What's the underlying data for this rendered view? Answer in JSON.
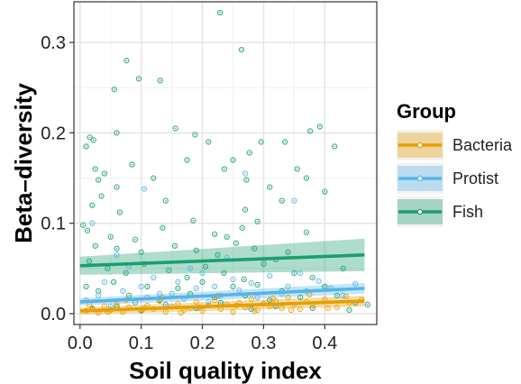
{
  "chart_data": {
    "type": "scatter",
    "title": "",
    "xlabel": "Soil quality index",
    "ylabel": "Beta–diversity",
    "xlim": [
      -0.01,
      0.485
    ],
    "ylim": [
      -0.012,
      0.345
    ],
    "x_ticks": [
      0.0,
      0.1,
      0.2,
      0.3,
      0.4
    ],
    "x_tick_labels": [
      "0.0",
      "0.1",
      "0.2",
      "0.3",
      "0.4"
    ],
    "y_ticks": [
      0.0,
      0.1,
      0.2,
      0.3
    ],
    "y_tick_labels": [
      "0.0",
      "0.1",
      "0.2",
      "0.3"
    ],
    "grid": true,
    "legend": {
      "title": "Group",
      "position": "right"
    },
    "series": [
      {
        "name": "Bacteria",
        "color": "#E69F00",
        "trend": {
          "x": [
            0.0,
            0.465
          ],
          "y": [
            0.003,
            0.014
          ],
          "ci": [
            0.004,
            0.006
          ]
        },
        "points": [
          [
            0.01,
            0.003
          ],
          [
            0.02,
            0.006
          ],
          [
            0.03,
            0.001
          ],
          [
            0.04,
            0.008
          ],
          [
            0.05,
            0.004
          ],
          [
            0.06,
            0.01
          ],
          [
            0.07,
            0.002
          ],
          [
            0.08,
            0.007
          ],
          [
            0.09,
            0.012
          ],
          [
            0.1,
            0.003
          ],
          [
            0.11,
            0.009
          ],
          [
            0.12,
            0.005
          ],
          [
            0.13,
            0.014
          ],
          [
            0.14,
            0.002
          ],
          [
            0.15,
            0.008
          ],
          [
            0.16,
            0.011
          ],
          [
            0.17,
            0.004
          ],
          [
            0.18,
            0.006
          ],
          [
            0.19,
            0.013
          ],
          [
            0.2,
            0.003
          ],
          [
            0.21,
            0.009
          ],
          [
            0.22,
            0.015
          ],
          [
            0.23,
            0.005
          ],
          [
            0.24,
            0.01
          ],
          [
            0.25,
            0.002
          ],
          [
            0.26,
            0.012
          ],
          [
            0.27,
            0.007
          ],
          [
            0.28,
            0.016
          ],
          [
            0.29,
            0.004
          ],
          [
            0.3,
            0.011
          ],
          [
            0.31,
            0.008
          ],
          [
            0.32,
            0.014
          ],
          [
            0.33,
            0.006
          ],
          [
            0.34,
            0.018
          ],
          [
            0.35,
            0.01
          ],
          [
            0.36,
            0.005
          ],
          [
            0.37,
            0.013
          ],
          [
            0.38,
            0.009
          ],
          [
            0.4,
            0.016
          ],
          [
            0.42,
            0.007
          ],
          [
            0.44,
            0.012
          ],
          [
            0.46,
            0.015
          ],
          [
            0.015,
            0.01
          ],
          [
            0.045,
            0.002
          ],
          [
            0.075,
            0.015
          ],
          [
            0.105,
            0.006
          ],
          [
            0.135,
            0.018
          ],
          [
            0.165,
            0.001
          ],
          [
            0.195,
            0.007
          ],
          [
            0.225,
            0.02
          ],
          [
            0.255,
            0.009
          ],
          [
            0.285,
            0.003
          ],
          [
            0.315,
            0.017
          ],
          [
            0.345,
            0.004
          ],
          [
            0.375,
            0.021
          ],
          [
            0.405,
            0.006
          ],
          [
            0.435,
            0.019
          ]
        ]
      },
      {
        "name": "Protist",
        "color": "#56B4E9",
        "trend": {
          "x": [
            0.0,
            0.465
          ],
          "y": [
            0.013,
            0.028
          ],
          "ci": [
            0.004,
            0.006
          ]
        },
        "points": [
          [
            0.01,
            0.015
          ],
          [
            0.03,
            0.02
          ],
          [
            0.05,
            0.008
          ],
          [
            0.06,
            0.065
          ],
          [
            0.07,
            0.025
          ],
          [
            0.09,
            0.012
          ],
          [
            0.1,
            0.03
          ],
          [
            0.11,
            0.018
          ],
          [
            0.12,
            0.04
          ],
          [
            0.14,
            0.01
          ],
          [
            0.15,
            0.022
          ],
          [
            0.16,
            0.035
          ],
          [
            0.17,
            0.016
          ],
          [
            0.19,
            0.028
          ],
          [
            0.2,
            0.045
          ],
          [
            0.21,
            0.013
          ],
          [
            0.22,
            0.03
          ],
          [
            0.23,
            0.02
          ],
          [
            0.24,
            0.062
          ],
          [
            0.26,
            0.026
          ],
          [
            0.27,
            0.155
          ],
          [
            0.28,
            0.034
          ],
          [
            0.29,
            0.018
          ],
          [
            0.31,
            0.042
          ],
          [
            0.33,
            0.022
          ],
          [
            0.34,
            0.03
          ],
          [
            0.35,
            0.125
          ],
          [
            0.37,
            0.025
          ],
          [
            0.39,
            0.036
          ],
          [
            0.41,
            0.028
          ],
          [
            0.43,
            0.02
          ],
          [
            0.45,
            0.033
          ],
          [
            0.02,
            0.1
          ],
          [
            0.04,
            0.035
          ],
          [
            0.08,
            0.052
          ],
          [
            0.13,
            0.022
          ],
          [
            0.18,
            0.05
          ],
          [
            0.25,
            0.038
          ],
          [
            0.3,
            0.06
          ],
          [
            0.36,
            0.045
          ],
          [
            0.105,
            0.138
          ]
        ]
      },
      {
        "name": "Fish",
        "color": "#1B9E6F",
        "trend": {
          "x": [
            0.0,
            0.465
          ],
          "y": [
            0.053,
            0.065
          ],
          "ci": [
            0.01,
            0.018
          ]
        },
        "points": [
          [
            0.229,
            0.333
          ],
          [
            0.076,
            0.28
          ],
          [
            0.264,
            0.292
          ],
          [
            0.056,
            0.248
          ],
          [
            0.096,
            0.26
          ],
          [
            0.131,
            0.258
          ],
          [
            0.016,
            0.195
          ],
          [
            0.022,
            0.192
          ],
          [
            0.01,
            0.185
          ],
          [
            0.06,
            0.2
          ],
          [
            0.156,
            0.205
          ],
          [
            0.188,
            0.198
          ],
          [
            0.21,
            0.19
          ],
          [
            0.25,
            0.17
          ],
          [
            0.277,
            0.178
          ],
          [
            0.296,
            0.19
          ],
          [
            0.335,
            0.19
          ],
          [
            0.376,
            0.202
          ],
          [
            0.392,
            0.207
          ],
          [
            0.416,
            0.185
          ],
          [
            0.025,
            0.16
          ],
          [
            0.04,
            0.155
          ],
          [
            0.03,
            0.148
          ],
          [
            0.06,
            0.14
          ],
          [
            0.085,
            0.165
          ],
          [
            0.12,
            0.15
          ],
          [
            0.175,
            0.17
          ],
          [
            0.236,
            0.16
          ],
          [
            0.272,
            0.148
          ],
          [
            0.31,
            0.14
          ],
          [
            0.355,
            0.16
          ],
          [
            0.37,
            0.15
          ],
          [
            0.02,
            0.12
          ],
          [
            0.035,
            0.13
          ],
          [
            0.065,
            0.112
          ],
          [
            0.14,
            0.125
          ],
          [
            0.27,
            0.115
          ],
          [
            0.33,
            0.125
          ],
          [
            0.4,
            0.135
          ],
          [
            0.005,
            0.098
          ],
          [
            0.012,
            0.092
          ],
          [
            0.05,
            0.085
          ],
          [
            0.09,
            0.082
          ],
          [
            0.135,
            0.095
          ],
          [
            0.185,
            0.103
          ],
          [
            0.22,
            0.088
          ],
          [
            0.265,
            0.095
          ],
          [
            0.29,
            0.102
          ],
          [
            0.24,
            0.085
          ],
          [
            0.37,
            0.09
          ],
          [
            0.025,
            0.075
          ],
          [
            0.06,
            0.072
          ],
          [
            0.1,
            0.068
          ],
          [
            0.155,
            0.075
          ],
          [
            0.19,
            0.07
          ],
          [
            0.225,
            0.065
          ],
          [
            0.255,
            0.078
          ],
          [
            0.285,
            0.072
          ],
          [
            0.32,
            0.06
          ],
          [
            0.34,
            0.068
          ],
          [
            0.015,
            0.058
          ],
          [
            0.045,
            0.05
          ],
          [
            0.075,
            0.045
          ],
          [
            0.105,
            0.055
          ],
          [
            0.145,
            0.048
          ],
          [
            0.175,
            0.04
          ],
          [
            0.205,
            0.052
          ],
          [
            0.235,
            0.045
          ],
          [
            0.268,
            0.038
          ],
          [
            0.3,
            0.055
          ],
          [
            0.35,
            0.045
          ],
          [
            0.38,
            0.04
          ],
          [
            0.43,
            0.05
          ],
          [
            0.01,
            0.03
          ],
          [
            0.03,
            0.025
          ],
          [
            0.055,
            0.035
          ],
          [
            0.08,
            0.02
          ],
          [
            0.11,
            0.03
          ],
          [
            0.13,
            0.015
          ],
          [
            0.16,
            0.028
          ],
          [
            0.18,
            0.022
          ],
          [
            0.2,
            0.035
          ],
          [
            0.22,
            0.018
          ],
          [
            0.25,
            0.03
          ],
          [
            0.27,
            0.02
          ],
          [
            0.29,
            0.032
          ],
          [
            0.31,
            0.015
          ],
          [
            0.33,
            0.025
          ],
          [
            0.36,
            0.018
          ],
          [
            0.4,
            0.03
          ],
          [
            0.42,
            0.02
          ],
          [
            0.45,
            0.012
          ],
          [
            0.47,
            0.01
          ],
          [
            0.02,
            0.005
          ],
          [
            0.06,
            0.008
          ],
          [
            0.1,
            0.004
          ],
          [
            0.14,
            0.01
          ],
          [
            0.19,
            0.006
          ],
          [
            0.23,
            0.012
          ],
          [
            0.28,
            0.005
          ],
          [
            0.32,
            0.008
          ],
          [
            0.38,
            0.006
          ],
          [
            0.44,
            0.004
          ]
        ]
      }
    ]
  }
}
